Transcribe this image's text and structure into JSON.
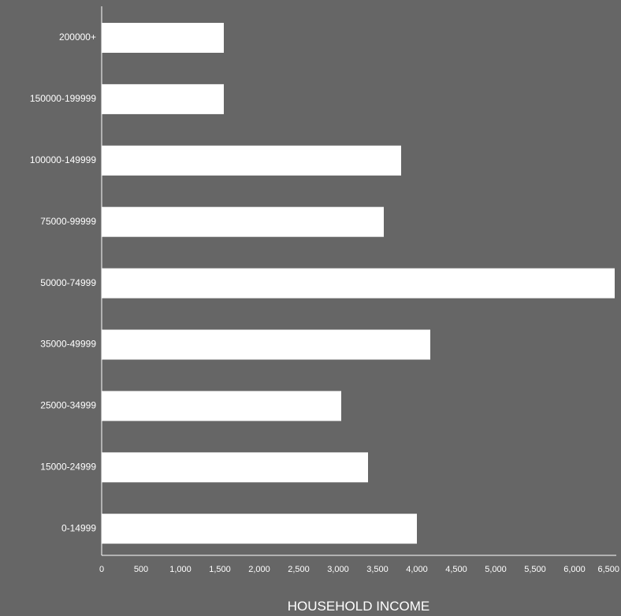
{
  "colors": {
    "background": "#666666",
    "bar": "#ffffff",
    "axis": "#ffffff",
    "text": "#ffffff"
  },
  "chart_data": {
    "type": "bar",
    "orientation": "horizontal",
    "title": "",
    "xlabel": "HOUSEHOLD INCOME",
    "ylabel": "",
    "categories": [
      "200000+",
      "150000-199999",
      "100000-149999",
      "75000-99999",
      "50000-74999",
      "35000-49999",
      "25000-34999",
      "15000-24999",
      "0-14999"
    ],
    "values": [
      1550,
      1550,
      3800,
      3580,
      6570,
      4170,
      3040,
      3380,
      4000
    ],
    "xlim": [
      0,
      6500
    ],
    "x_ticks": [
      {
        "value": 0,
        "label": "0"
      },
      {
        "value": 500,
        "label": "500"
      },
      {
        "value": 1000,
        "label": "1,000"
      },
      {
        "value": 1500,
        "label": "1,500"
      },
      {
        "value": 2000,
        "label": "2,000"
      },
      {
        "value": 2500,
        "label": "2,500"
      },
      {
        "value": 3000,
        "label": "3,000"
      },
      {
        "value": 3500,
        "label": "3,500"
      },
      {
        "value": 4000,
        "label": "4,000"
      },
      {
        "value": 4500,
        "label": "4,500"
      },
      {
        "value": 5000,
        "label": "5,000"
      },
      {
        "value": 5500,
        "label": "5,500"
      },
      {
        "value": 6000,
        "label": "6,000"
      },
      {
        "value": 6500,
        "label": "6,500"
      }
    ],
    "grid": false,
    "legend": "none"
  }
}
